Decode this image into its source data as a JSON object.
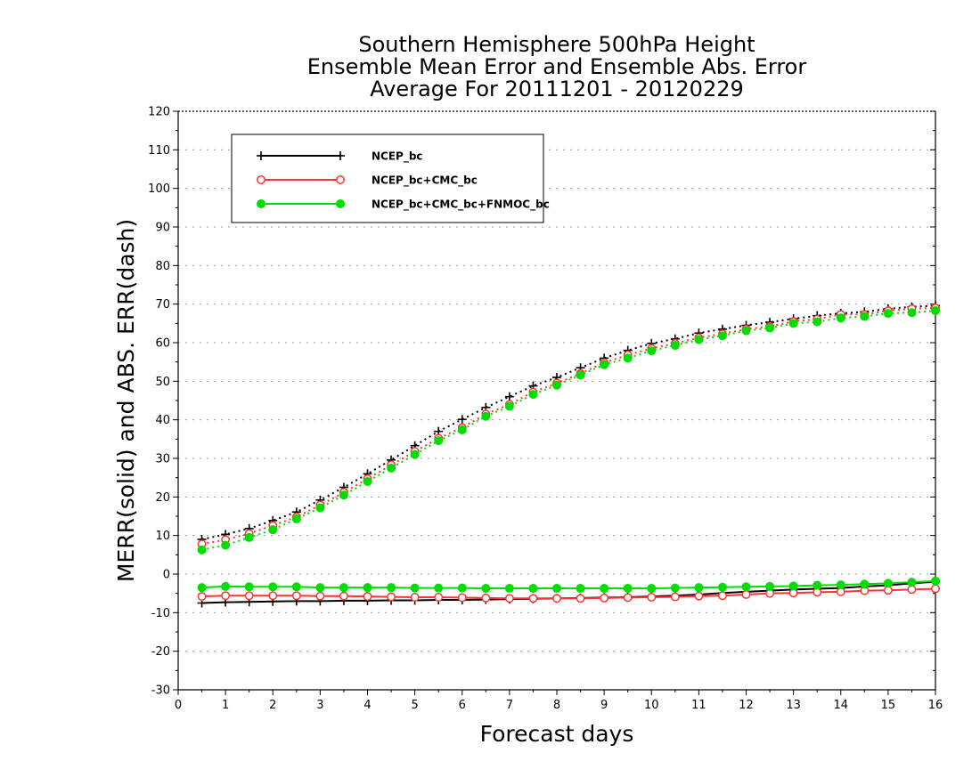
{
  "chart_data": {
    "type": "line",
    "title_lines": [
      "Southern Hemisphere 500hPa Height",
      "Ensemble Mean Error and Ensemble Abs. Error",
      "Average For 20111201 - 20120229"
    ],
    "xlabel": "Forecast days",
    "ylabel": "MERR(solid) and ABS. ERR(dash)",
    "xlim": [
      0,
      16
    ],
    "ylim": [
      -30,
      120
    ],
    "x_ticks": [
      "0",
      "1",
      "2",
      "3",
      "4",
      "5",
      "6",
      "7",
      "8",
      "9",
      "10",
      "11",
      "12",
      "13",
      "14",
      "15",
      "16"
    ],
    "y_ticks": [
      "120",
      "110",
      "100",
      "90",
      "80",
      "70",
      "60",
      "50",
      "40",
      "30",
      "20",
      "10",
      "0",
      "-10",
      "-20",
      "-30"
    ],
    "grid": "horizontal-dotted",
    "legend_position": "top-left",
    "x": [
      0.5,
      1,
      1.5,
      2,
      2.5,
      3,
      3.5,
      4,
      4.5,
      5,
      5.5,
      6,
      6.5,
      7,
      7.5,
      8,
      8.5,
      9,
      9.5,
      10,
      10.5,
      11,
      11.5,
      12,
      12.5,
      13,
      13.5,
      14,
      14.5,
      15,
      15.5,
      16
    ],
    "series": [
      {
        "name": "NCEP_bc",
        "color": "#000000",
        "marker": "plus",
        "merr": [
          -7.5,
          -7.3,
          -7.2,
          -7.1,
          -7.0,
          -7.0,
          -6.9,
          -6.9,
          -6.8,
          -6.8,
          -6.7,
          -6.7,
          -6.6,
          -6.5,
          -6.4,
          -6.3,
          -6.2,
          -6.1,
          -6.0,
          -5.8,
          -5.6,
          -5.3,
          -4.9,
          -4.6,
          -4.3,
          -4.0,
          -3.8,
          -3.6,
          -3.2,
          -2.9,
          -2.4,
          -2.0
        ],
        "abserr": [
          9.0,
          10.3,
          11.8,
          13.9,
          16.1,
          19.2,
          22.5,
          26.0,
          29.6,
          33.3,
          37.0,
          40.1,
          43.2,
          46.0,
          48.8,
          51.0,
          53.5,
          56.0,
          58.0,
          59.8,
          61.0,
          62.5,
          63.5,
          64.5,
          65.3,
          66.2,
          67.0,
          67.6,
          68.0,
          68.8,
          69.3,
          69.6
        ]
      },
      {
        "name": "NCEP_bc+CMC_bc",
        "color": "#ff3333",
        "marker": "open-circle",
        "merr": [
          -5.8,
          -5.6,
          -5.6,
          -5.6,
          -5.6,
          -5.7,
          -5.7,
          -5.8,
          -5.9,
          -6.0,
          -6.0,
          -6.1,
          -6.2,
          -6.3,
          -6.3,
          -6.3,
          -6.3,
          -6.2,
          -6.1,
          -6.0,
          -5.9,
          -5.7,
          -5.6,
          -5.3,
          -5.0,
          -4.9,
          -4.7,
          -4.6,
          -4.3,
          -4.2,
          -4.0,
          -3.8
        ],
        "abserr": [
          7.8,
          8.9,
          10.5,
          12.6,
          14.8,
          17.9,
          21.2,
          24.7,
          28.3,
          31.8,
          35.2,
          38.0,
          41.5,
          44.0,
          47.2,
          49.5,
          52.0,
          54.8,
          56.8,
          58.5,
          59.8,
          61.3,
          62.3,
          63.5,
          64.2,
          65.5,
          66.1,
          67.3,
          67.3,
          68.3,
          68.8,
          69.0
        ]
      },
      {
        "name": "NCEP_bc+CMC_bc+FNMOC_bc",
        "color": "#00dd00",
        "marker": "filled-circle",
        "merr": [
          -3.5,
          -3.2,
          -3.3,
          -3.3,
          -3.3,
          -3.5,
          -3.5,
          -3.5,
          -3.5,
          -3.6,
          -3.6,
          -3.6,
          -3.7,
          -3.7,
          -3.7,
          -3.7,
          -3.7,
          -3.7,
          -3.7,
          -3.7,
          -3.6,
          -3.5,
          -3.4,
          -3.3,
          -3.2,
          -3.1,
          -2.9,
          -2.8,
          -2.6,
          -2.4,
          -2.1,
          -1.8
        ],
        "abserr": [
          6.3,
          7.5,
          9.5,
          11.5,
          14.3,
          17.2,
          20.5,
          24.0,
          27.5,
          31.0,
          34.6,
          37.4,
          40.9,
          43.5,
          46.6,
          49.0,
          51.6,
          54.3,
          56.0,
          57.9,
          59.3,
          60.8,
          61.8,
          63.1,
          63.8,
          65.0,
          65.4,
          66.4,
          66.8,
          67.6,
          67.8,
          68.3
        ]
      }
    ]
  }
}
